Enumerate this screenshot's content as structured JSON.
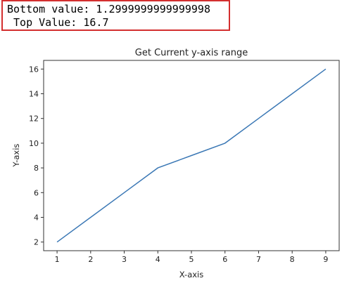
{
  "console_output": {
    "line1": "Bottom value: 1.2999999999999998",
    "line2": " Top Value: 16.7"
  },
  "colors": {
    "output_border": "#d32f2f",
    "series_line": "#3b78b5"
  },
  "chart_data": {
    "type": "line",
    "title": "Get Current y-axis range",
    "xlabel": "X-axis",
    "ylabel": "Y-axis",
    "x": [
      1,
      2,
      3,
      4,
      5,
      6,
      7,
      8,
      9
    ],
    "series": [
      {
        "values": [
          2,
          4,
          6,
          8,
          9,
          10,
          12,
          14,
          16
        ]
      }
    ],
    "xlim": [
      0.6,
      9.4
    ],
    "ylim": [
      1.2999999999999998,
      16.7
    ],
    "xticks": [
      1,
      2,
      3,
      4,
      5,
      6,
      7,
      8,
      9
    ],
    "yticks": [
      2,
      4,
      6,
      8,
      10,
      12,
      14,
      16
    ],
    "grid": false
  }
}
